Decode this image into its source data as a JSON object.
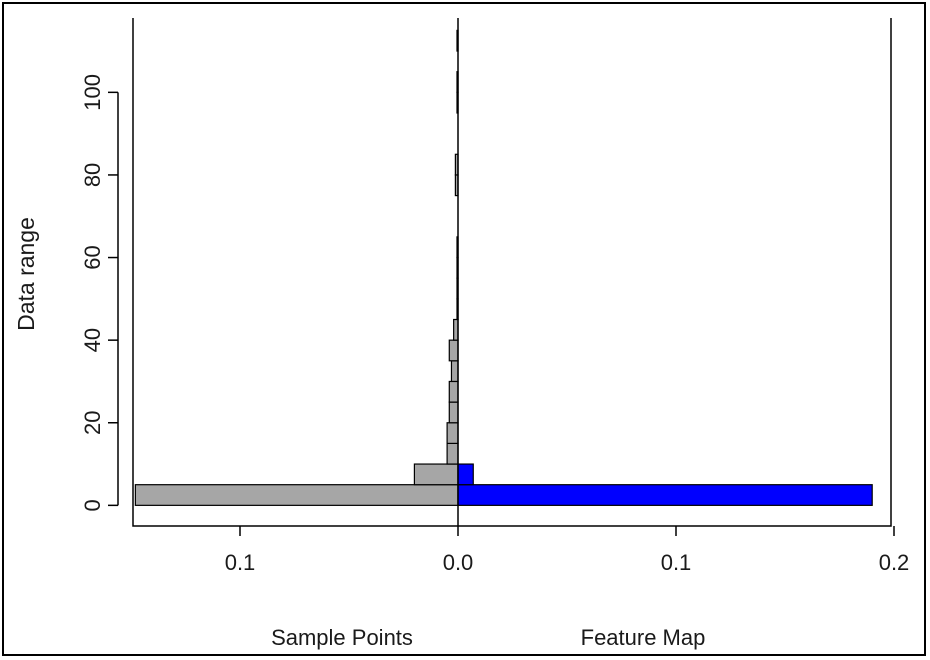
{
  "chart_data": {
    "type": "bar",
    "orientation": "horizontal-back-to-back",
    "ylabel": "Data range",
    "ylim": [
      -5,
      118
    ],
    "y_ticks": [
      0,
      20,
      40,
      60,
      80,
      100
    ],
    "y_tick_labels": [
      "0",
      "20",
      "40",
      "60",
      "80",
      "100"
    ],
    "x_ticks": [
      -0.1,
      0.0,
      0.1,
      0.2
    ],
    "x_tick_labels": [
      "0.1",
      "0.0",
      "0.1",
      "0.2"
    ],
    "bin_width": 5,
    "grid": false,
    "legend": "none",
    "series": [
      {
        "name": "Sample Points",
        "side": "left",
        "color": "#a6a6a6",
        "bins": [
          {
            "y0": 0,
            "y1": 5,
            "value": 0.148
          },
          {
            "y0": 5,
            "y1": 10,
            "value": 0.02
          },
          {
            "y0": 10,
            "y1": 15,
            "value": 0.005
          },
          {
            "y0": 15,
            "y1": 20,
            "value": 0.005
          },
          {
            "y0": 20,
            "y1": 25,
            "value": 0.004
          },
          {
            "y0": 25,
            "y1": 30,
            "value": 0.004
          },
          {
            "y0": 30,
            "y1": 35,
            "value": 0.003
          },
          {
            "y0": 35,
            "y1": 40,
            "value": 0.004
          },
          {
            "y0": 40,
            "y1": 45,
            "value": 0.002
          },
          {
            "y0": 45,
            "y1": 50,
            "value": 0.0004
          },
          {
            "y0": 50,
            "y1": 55,
            "value": 0.0004
          },
          {
            "y0": 55,
            "y1": 60,
            "value": 0.0004
          },
          {
            "y0": 60,
            "y1": 65,
            "value": 0.0004
          },
          {
            "y0": 75,
            "y1": 80,
            "value": 0.0012
          },
          {
            "y0": 80,
            "y1": 85,
            "value": 0.0012
          },
          {
            "y0": 95,
            "y1": 100,
            "value": 0.0004
          },
          {
            "y0": 100,
            "y1": 105,
            "value": 0.0004
          },
          {
            "y0": 110,
            "y1": 115,
            "value": 0.0004
          }
        ]
      },
      {
        "name": "Feature Map",
        "side": "right",
        "color": "#0000ff",
        "bins": [
          {
            "y0": 0,
            "y1": 5,
            "value": 0.19
          },
          {
            "y0": 5,
            "y1": 10,
            "value": 0.007
          }
        ]
      }
    ]
  }
}
